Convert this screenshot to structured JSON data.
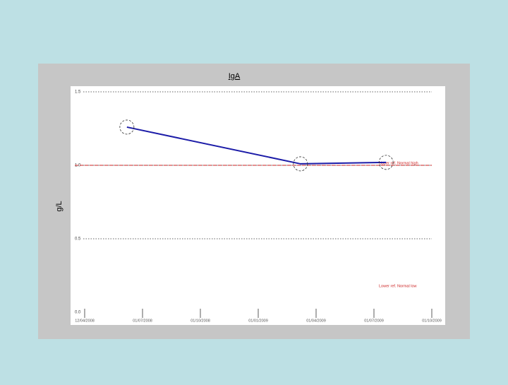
{
  "chart_data": {
    "type": "line",
    "title": "IgA",
    "y_label": "g/L",
    "x": [
      0.73,
      3.73,
      5.21
    ],
    "xlim": [
      0,
      6
    ],
    "xticks": [
      {
        "value": 0,
        "label": "12/04/2008"
      },
      {
        "value": 1,
        "label": "01/07/2008"
      },
      {
        "value": 2,
        "label": "01/10/2008"
      },
      {
        "value": 3,
        "label": "01/01/2009"
      },
      {
        "value": 4,
        "label": "01/04/2009"
      },
      {
        "value": 5,
        "label": "01/07/2009"
      },
      {
        "value": 6,
        "label": "01/10/2009"
      }
    ],
    "series": [
      {
        "name": "IgA",
        "color": "#1c1ca8",
        "values": [
          1.26,
          1.01,
          1.02
        ]
      }
    ],
    "ylim": [
      0,
      1.5
    ],
    "yticks": [
      {
        "value": 0,
        "label": "0.0"
      },
      0.5,
      {
        "value": 1,
        "label": "1.0"
      },
      1.5
    ],
    "grid": true,
    "reference_lines": [
      {
        "value": 1,
        "label": "Upper ref. Normal high",
        "color": "#cc2222"
      }
    ],
    "annotations": [
      "Lower ref. Normal low"
    ]
  }
}
